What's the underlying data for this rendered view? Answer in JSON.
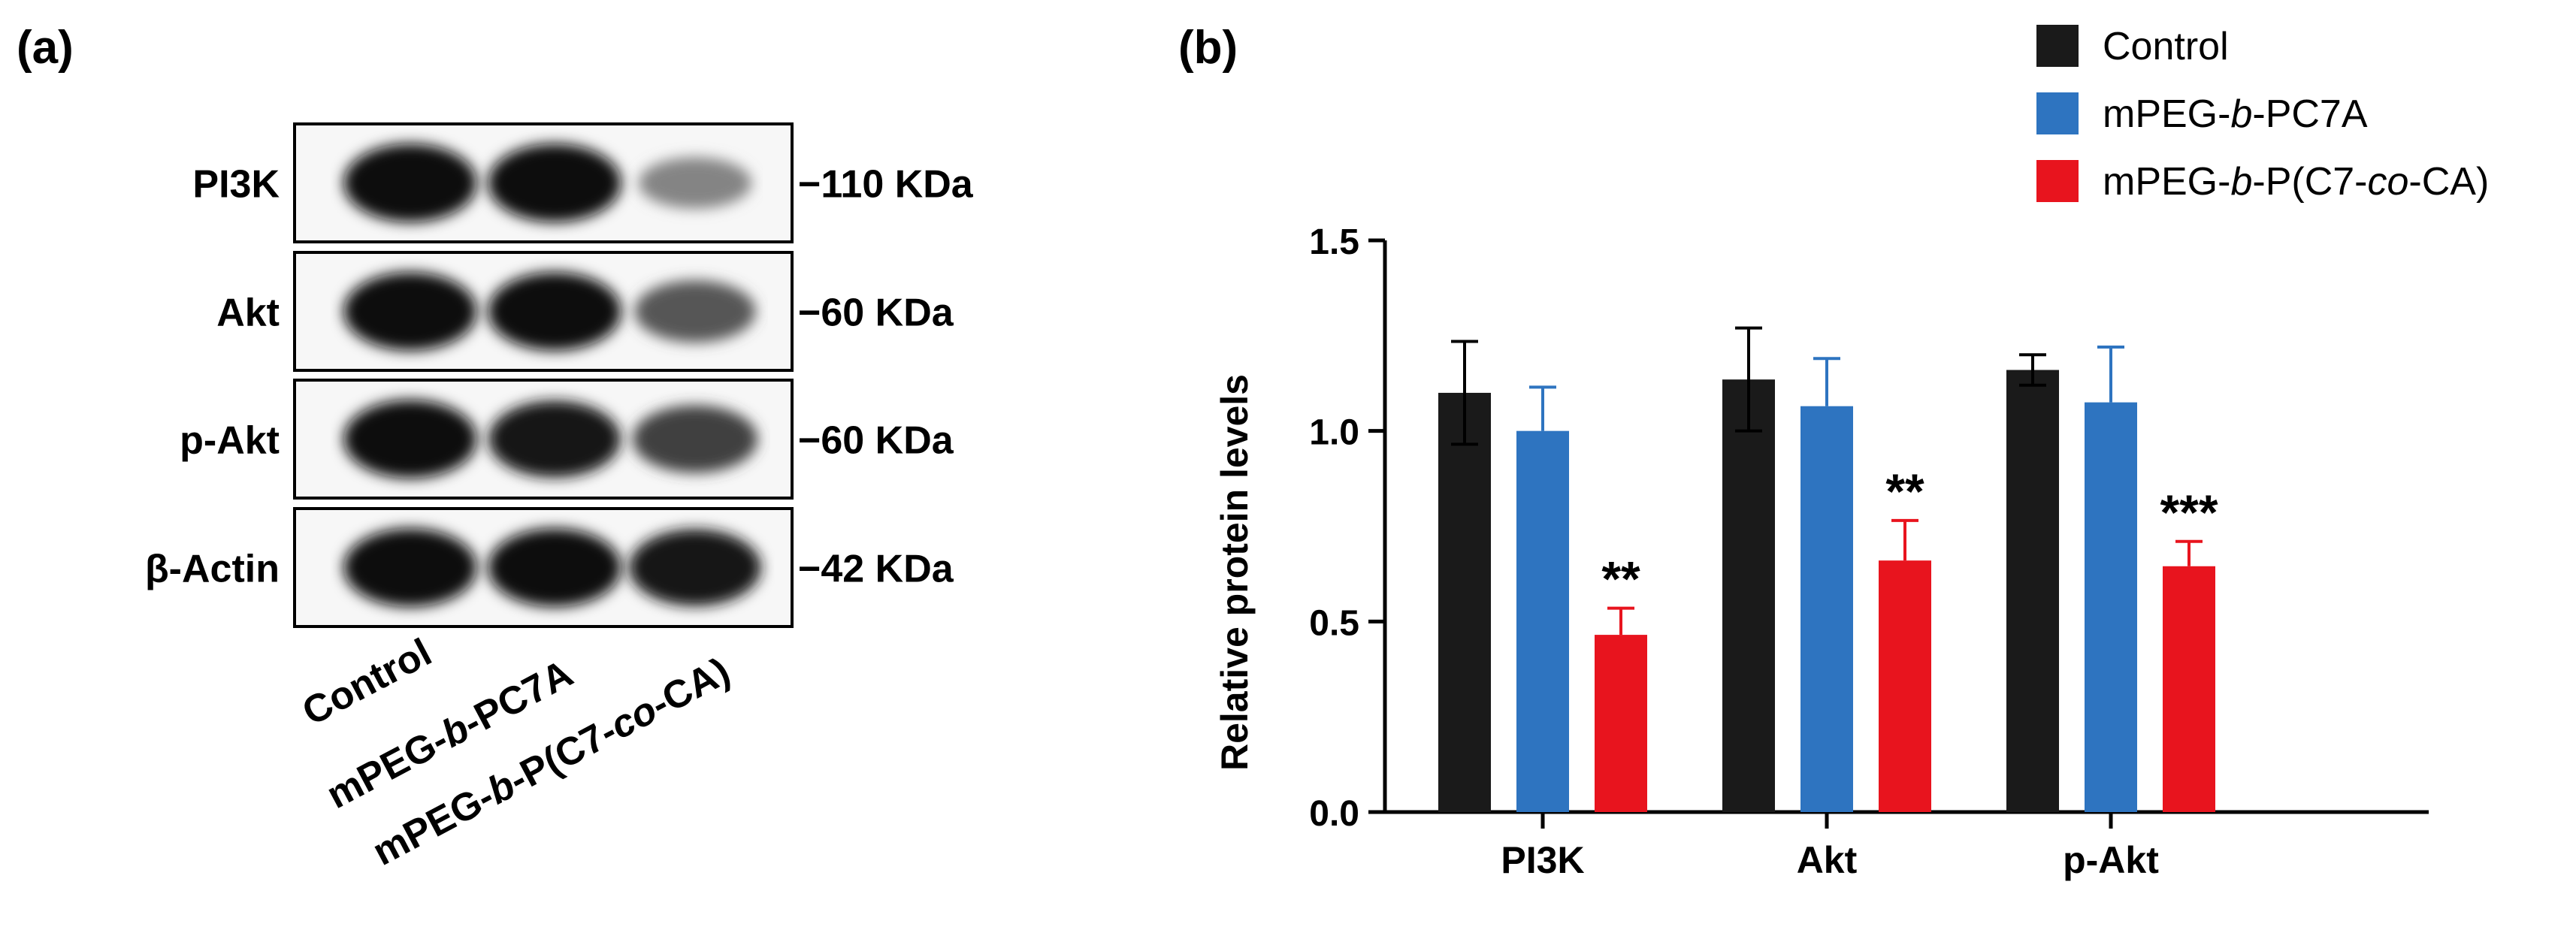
{
  "panel_a": {
    "label": "(a)",
    "rows": [
      {
        "name": "PI3K",
        "marker": "−110 KDa",
        "bands": [
          0.95,
          0.95,
          0.45
        ]
      },
      {
        "name": "Akt",
        "marker": "−60 KDa",
        "bands": [
          0.95,
          0.95,
          0.65
        ]
      },
      {
        "name": "p-Akt",
        "marker": "−60 KDa",
        "bands": [
          0.95,
          0.92,
          0.75
        ]
      },
      {
        "name": "β-Actin",
        "marker": "−42 KDa",
        "bands": [
          0.95,
          0.95,
          0.92
        ]
      }
    ],
    "lanes": [
      {
        "parts": [
          {
            "t": "Control",
            "i": false
          }
        ]
      },
      {
        "parts": [
          {
            "t": "mPEG-",
            "i": false
          },
          {
            "t": "b",
            "i": true
          },
          {
            "t": "-PC7A",
            "i": false
          }
        ]
      },
      {
        "parts": [
          {
            "t": "mPEG-",
            "i": false
          },
          {
            "t": "b",
            "i": true
          },
          {
            "t": "-P(C7-",
            "i": false
          },
          {
            "t": "co",
            "i": true
          },
          {
            "t": "-CA)",
            "i": false
          }
        ]
      }
    ]
  },
  "panel_b": {
    "label": "(b)"
  },
  "chart_data": {
    "type": "bar",
    "title": "",
    "xlabel": "",
    "ylabel": "Relative protein levels",
    "ylim": [
      0,
      1.5
    ],
    "yticks": [
      0.0,
      0.5,
      1.0,
      1.5
    ],
    "ytick_labels": [
      "0.0",
      "0.5",
      "1.0",
      "1.5"
    ],
    "categories": [
      "PI3K",
      "Akt",
      "p-Akt"
    ],
    "series": [
      {
        "name": "Control",
        "legend_parts": [
          {
            "t": "Control",
            "i": false
          }
        ],
        "color": "#1a1a1a",
        "values": [
          1.1,
          1.135,
          1.16
        ],
        "errors": [
          0.135,
          0.135,
          0.04
        ],
        "error_style": "both"
      },
      {
        "name": "mPEG-b-PC7A",
        "legend_parts": [
          {
            "t": "mPEG-",
            "i": false
          },
          {
            "t": "b",
            "i": true
          },
          {
            "t": "-PC7A",
            "i": false
          }
        ],
        "color": "#2e74c0",
        "values": [
          1.0,
          1.065,
          1.075
        ],
        "errors": [
          0.115,
          0.125,
          0.145
        ],
        "error_style": "up"
      },
      {
        "name": "mPEG-b-P(C7-co-CA)",
        "legend_parts": [
          {
            "t": "mPEG-",
            "i": false
          },
          {
            "t": "b",
            "i": true
          },
          {
            "t": "-P(C7-",
            "i": false
          },
          {
            "t": "co",
            "i": true
          },
          {
            "t": "-CA)",
            "i": false
          }
        ],
        "color": "#e8141e",
        "values": [
          0.465,
          0.66,
          0.645
        ],
        "errors": [
          0.07,
          0.105,
          0.065
        ],
        "error_style": "up"
      }
    ],
    "annotations": [
      {
        "category": 0,
        "series": 2,
        "text": "**"
      },
      {
        "category": 1,
        "series": 2,
        "text": "**"
      },
      {
        "category": 2,
        "series": 2,
        "text": "***"
      }
    ],
    "legend_position": "top-right",
    "grid": false
  }
}
